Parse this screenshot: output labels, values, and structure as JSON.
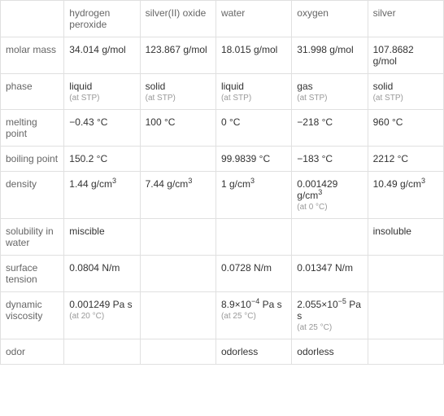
{
  "columns": [
    "",
    "hydrogen peroxide",
    "silver(II) oxide",
    "water",
    "oxygen",
    "silver"
  ],
  "rows": [
    {
      "header": "molar mass",
      "cells": [
        {
          "main": "34.014 g/mol"
        },
        {
          "main": "123.867 g/mol"
        },
        {
          "main": "18.015 g/mol"
        },
        {
          "main": "31.998 g/mol"
        },
        {
          "main": "107.8682 g/mol"
        }
      ]
    },
    {
      "header": "phase",
      "cells": [
        {
          "main": "liquid",
          "sub": "(at STP)"
        },
        {
          "main": "solid",
          "sub": "(at STP)"
        },
        {
          "main": "liquid",
          "sub": "(at STP)"
        },
        {
          "main": "gas",
          "sub": "(at STP)"
        },
        {
          "main": "solid",
          "sub": "(at STP)"
        }
      ]
    },
    {
      "header": "melting point",
      "cells": [
        {
          "main": "−0.43 °C"
        },
        {
          "main": "100 °C"
        },
        {
          "main": "0 °C"
        },
        {
          "main": "−218 °C"
        },
        {
          "main": "960 °C"
        }
      ]
    },
    {
      "header": "boiling point",
      "cells": [
        {
          "main": "150.2 °C"
        },
        {
          "main": ""
        },
        {
          "main": "99.9839 °C"
        },
        {
          "main": "−183 °C"
        },
        {
          "main": "2212 °C"
        }
      ]
    },
    {
      "header": "density",
      "cells": [
        {
          "main_html": "1.44 g/cm<sup>3</sup>"
        },
        {
          "main_html": "7.44 g/cm<sup>3</sup>"
        },
        {
          "main_html": "1 g/cm<sup>3</sup>"
        },
        {
          "main_html": "0.001429 g/cm<sup>3</sup>",
          "sub": "(at 0 °C)"
        },
        {
          "main_html": "10.49 g/cm<sup>3</sup>"
        }
      ]
    },
    {
      "header": "solubility in water",
      "cells": [
        {
          "main": "miscible"
        },
        {
          "main": ""
        },
        {
          "main": ""
        },
        {
          "main": ""
        },
        {
          "main": "insoluble"
        }
      ]
    },
    {
      "header": "surface tension",
      "cells": [
        {
          "main": "0.0804 N/m"
        },
        {
          "main": ""
        },
        {
          "main": "0.0728 N/m"
        },
        {
          "main": "0.01347 N/m"
        },
        {
          "main": ""
        }
      ]
    },
    {
      "header": "dynamic viscosity",
      "cells": [
        {
          "main": "0.001249 Pa s",
          "sub": "(at 20 °C)"
        },
        {
          "main": ""
        },
        {
          "main_html": "8.9×10<sup>−4</sup> Pa s",
          "sub": "(at 25 °C)"
        },
        {
          "main_html": "2.055×10<sup>−5</sup> Pa s",
          "sub": "(at 25 °C)"
        },
        {
          "main": ""
        }
      ]
    },
    {
      "header": "odor",
      "cells": [
        {
          "main": ""
        },
        {
          "main": ""
        },
        {
          "main": "odorless"
        },
        {
          "main": "odorless"
        },
        {
          "main": ""
        }
      ]
    }
  ],
  "style": {
    "border_color": "#e0e0e0",
    "header_text_color": "#666666",
    "body_text_color": "#333333",
    "sub_text_color": "#999999",
    "background_color": "#ffffff",
    "font_size_main": 12,
    "font_size_sub": 10
  }
}
